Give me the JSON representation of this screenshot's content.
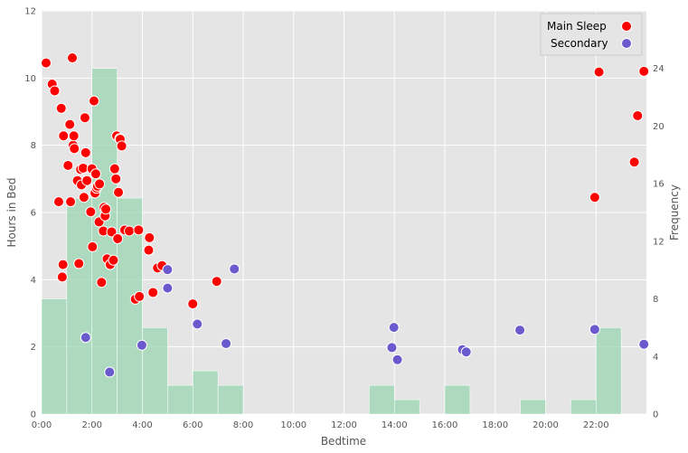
{
  "chart_data": {
    "type": "scatter",
    "xlabel": "Bedtime",
    "ylabel": "Hours in Bed",
    "y2label": "Frequency",
    "xlim": [
      0,
      24
    ],
    "ylim": [
      0,
      12
    ],
    "y2lim": [
      0,
      28
    ],
    "grid": true,
    "legend_position": "top-right",
    "x_ticks": [
      "0:00",
      "2:00",
      "4:00",
      "6:00",
      "8:00",
      "10:00",
      "12:00",
      "14:00",
      "16:00",
      "18:00",
      "20:00",
      "22:00"
    ],
    "y_ticks": [
      "0",
      "2",
      "4",
      "6",
      "8",
      "10",
      "12"
    ],
    "y2_ticks": [
      "0",
      "4",
      "8",
      "12",
      "16",
      "20",
      "24"
    ],
    "legend": [
      {
        "label": "Main Sleep",
        "color": "#ff0000"
      },
      {
        "label": "Secondary",
        "color": "#6a5acd"
      }
    ],
    "histogram": {
      "color": "#99d5b2",
      "bin_width_hours": 1,
      "bins": [
        {
          "start": 0,
          "count": 8
        },
        {
          "start": 1,
          "count": 15
        },
        {
          "start": 2,
          "count": 24
        },
        {
          "start": 3,
          "count": 15
        },
        {
          "start": 4,
          "count": 6
        },
        {
          "start": 5,
          "count": 2
        },
        {
          "start": 6,
          "count": 3
        },
        {
          "start": 7,
          "count": 2
        },
        {
          "start": 13,
          "count": 2
        },
        {
          "start": 14,
          "count": 1
        },
        {
          "start": 16,
          "count": 2
        },
        {
          "start": 19,
          "count": 1
        },
        {
          "start": 21,
          "count": 1
        },
        {
          "start": 22,
          "count": 6
        }
      ]
    },
    "series": [
      {
        "name": "Main Sleep",
        "color": "#ff0000",
        "x": [
          0.18,
          0.42,
          0.52,
          0.68,
          0.78,
          0.82,
          0.85,
          0.87,
          1.05,
          1.12,
          1.15,
          1.22,
          1.25,
          1.28,
          1.3,
          1.42,
          1.48,
          1.55,
          1.58,
          1.65,
          1.68,
          1.72,
          1.75,
          1.8,
          1.95,
          2.0,
          2.02,
          2.08,
          2.12,
          2.15,
          2.18,
          2.22,
          2.28,
          2.3,
          2.38,
          2.45,
          2.48,
          2.52,
          2.55,
          2.6,
          2.72,
          2.78,
          2.85,
          2.9,
          2.95,
          2.98,
          3.02,
          3.05,
          3.1,
          3.12,
          3.18,
          3.3,
          3.48,
          3.72,
          3.85,
          3.88,
          4.25,
          4.28,
          4.42,
          4.6,
          4.78,
          6.0,
          6.95,
          21.95,
          22.12,
          23.52,
          23.65,
          23.9
        ],
        "y": [
          10.45,
          9.82,
          9.62,
          6.32,
          9.1,
          4.08,
          4.45,
          8.28,
          7.4,
          8.62,
          6.32,
          10.6,
          8.0,
          8.28,
          7.9,
          6.95,
          4.48,
          7.28,
          6.82,
          7.32,
          6.45,
          8.82,
          7.78,
          6.95,
          6.02,
          7.3,
          4.98,
          9.32,
          6.58,
          7.15,
          6.72,
          6.78,
          5.72,
          6.85,
          3.92,
          5.45,
          6.15,
          5.9,
          6.1,
          4.62,
          4.45,
          5.42,
          4.58,
          7.3,
          7.0,
          8.28,
          5.22,
          6.6,
          8.2,
          8.18,
          7.98,
          5.48,
          5.45,
          3.42,
          5.48,
          3.5,
          4.88,
          5.25,
          3.62,
          4.35,
          4.42,
          3.28,
          3.95,
          6.45,
          10.18,
          7.5,
          8.88,
          10.2
        ]
      },
      {
        "name": "Secondary",
        "color": "#6a5acd",
        "x": [
          1.75,
          2.7,
          3.98,
          5.0,
          5.0,
          6.18,
          7.32,
          7.65,
          13.9,
          13.98,
          14.12,
          16.7,
          16.85,
          18.98,
          21.95,
          23.9
        ],
        "y": [
          2.28,
          1.25,
          2.05,
          4.3,
          3.75,
          2.68,
          2.1,
          4.32,
          1.98,
          2.58,
          1.62,
          1.92,
          1.85,
          2.5,
          2.52,
          2.08
        ]
      }
    ]
  }
}
